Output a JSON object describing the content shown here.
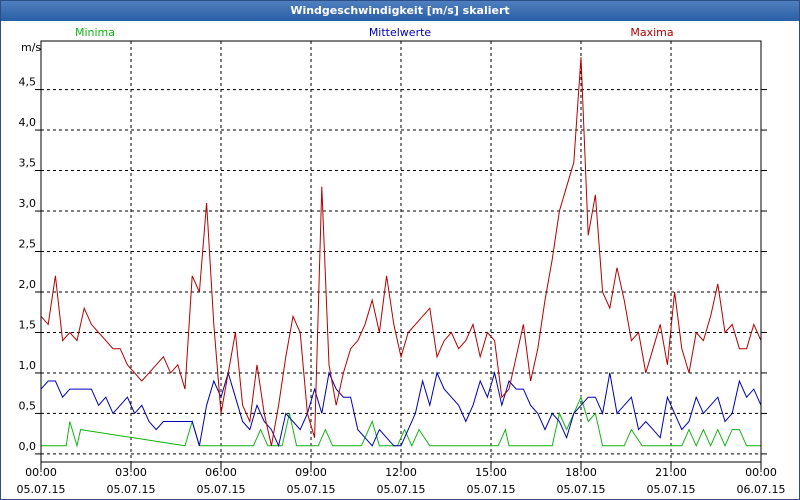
{
  "window": {
    "title": "Windgeschwindigkeit [m/s] skaliert"
  },
  "chart_data": {
    "type": "line",
    "title": "Windgeschwindigkeit [m/s] skaliert",
    "ylabel": "m/s",
    "ylim": [
      -0.1,
      5.1
    ],
    "xlim": [
      0,
      100
    ],
    "grid": true,
    "legend_placement": "top",
    "yticks": [
      {
        "v": 0.0,
        "label": "0,0"
      },
      {
        "v": 0.5,
        "label": "0,5"
      },
      {
        "v": 1.0,
        "label": "1,0"
      },
      {
        "v": 1.5,
        "label": "1,5"
      },
      {
        "v": 2.0,
        "label": "2,0"
      },
      {
        "v": 2.5,
        "label": "2,5"
      },
      {
        "v": 3.0,
        "label": "3,0"
      },
      {
        "v": 3.5,
        "label": "3,5"
      },
      {
        "v": 4.0,
        "label": "4,0"
      },
      {
        "v": 4.5,
        "label": "4,5"
      }
    ],
    "xticks": [
      {
        "v": 0,
        "time": "00:00",
        "date": "05.07.15"
      },
      {
        "v": 12.5,
        "time": "03:00",
        "date": "05.07.15"
      },
      {
        "v": 25,
        "time": "06:00",
        "date": "05.07.15"
      },
      {
        "v": 37.5,
        "time": "09:00",
        "date": "05.07.15"
      },
      {
        "v": 50,
        "time": "12:00",
        "date": "05.07.15"
      },
      {
        "v": 62.5,
        "time": "15:00",
        "date": "05.07.15"
      },
      {
        "v": 75,
        "time": "18:00",
        "date": "05.07.15"
      },
      {
        "v": 87.5,
        "time": "21:00",
        "date": "05.07.15"
      },
      {
        "v": 100,
        "time": "00:00",
        "date": "06.07.15"
      }
    ],
    "series": [
      {
        "name": "Minima",
        "color": "#13b313",
        "x": [
          0,
          3.5,
          4,
          5,
          5.5,
          20,
          21,
          22,
          29.5,
          30.5,
          31.5,
          33.5,
          34.5,
          35.5,
          38.5,
          39.5,
          40.5,
          44.5,
          45.5,
          46,
          47,
          48,
          49,
          49.5,
          50.5,
          51.5,
          52.5,
          54,
          55,
          63.5,
          64.5,
          65,
          71,
          72,
          73,
          74,
          75,
          76,
          77,
          78,
          81,
          82,
          83.5,
          85,
          86,
          88,
          89,
          90,
          91,
          92,
          93,
          94,
          95,
          96,
          97,
          98,
          99,
          100
        ],
        "y": [
          0.1,
          0.1,
          0.4,
          0.1,
          0.3,
          0.1,
          0.4,
          0.1,
          0.1,
          0.3,
          0.1,
          0.1,
          0.5,
          0.1,
          0.1,
          0.3,
          0.1,
          0.1,
          0.3,
          0.4,
          0.1,
          0.1,
          0.1,
          0.1,
          0.3,
          0.1,
          0.3,
          0.1,
          0.1,
          0.1,
          0.3,
          0.1,
          0.1,
          0.5,
          0.3,
          0.5,
          0.7,
          0.4,
          0.5,
          0.1,
          0.1,
          0.3,
          0.1,
          0.1,
          0.1,
          0.1,
          0.1,
          0.3,
          0.1,
          0.3,
          0.1,
          0.3,
          0.1,
          0.3,
          0.3,
          0.1,
          0.1,
          0.1
        ]
      },
      {
        "name": "Mittelwerte",
        "color": "#0000b4",
        "x": [
          0,
          1,
          2,
          3,
          4,
          5,
          6,
          7,
          8,
          9,
          10,
          11,
          12,
          13,
          14,
          15,
          16,
          17,
          18,
          19,
          20,
          21,
          22,
          23,
          24,
          25,
          26,
          27,
          28,
          29,
          30,
          31,
          32,
          33,
          34,
          35,
          36,
          37,
          38,
          39,
          40,
          41,
          42,
          43,
          44,
          45,
          46,
          47,
          48,
          49,
          50,
          51,
          52,
          53,
          54,
          55,
          56,
          57,
          58,
          59,
          60,
          61,
          62,
          63,
          64,
          65,
          66,
          67,
          68,
          69,
          70,
          71,
          72,
          73,
          74,
          75,
          76,
          77,
          78,
          79,
          80,
          81,
          82,
          83,
          84,
          85,
          86,
          87,
          88,
          89,
          90,
          91,
          92,
          93,
          94,
          95,
          96,
          97,
          98,
          99,
          100
        ],
        "y": [
          0.8,
          0.9,
          0.9,
          0.7,
          0.8,
          0.8,
          0.8,
          0.8,
          0.6,
          0.7,
          0.5,
          0.6,
          0.7,
          0.5,
          0.6,
          0.4,
          0.3,
          0.4,
          0.4,
          0.4,
          0.4,
          0.4,
          0.1,
          0.6,
          0.9,
          0.7,
          1.0,
          0.7,
          0.4,
          0.3,
          0.6,
          0.4,
          0.3,
          0.1,
          0.5,
          0.4,
          0.3,
          0.5,
          0.8,
          0.5,
          1.0,
          0.8,
          0.7,
          0.7,
          0.3,
          0.2,
          0.1,
          0.3,
          0.2,
          0.1,
          0.1,
          0.3,
          0.5,
          0.9,
          0.6,
          1.0,
          0.8,
          0.7,
          0.6,
          0.4,
          0.6,
          0.9,
          0.7,
          1.0,
          0.6,
          0.9,
          0.8,
          0.8,
          0.6,
          0.5,
          0.3,
          0.5,
          0.4,
          0.2,
          0.5,
          0.6,
          0.7,
          0.7,
          0.5,
          1.0,
          0.5,
          0.6,
          0.7,
          0.3,
          0.4,
          0.3,
          0.2,
          0.7,
          0.5,
          0.3,
          0.4,
          0.7,
          0.5,
          0.6,
          0.7,
          0.4,
          0.5,
          0.9,
          0.7,
          0.8,
          0.6
        ]
      },
      {
        "name": "Maxima",
        "color": "#b40000",
        "x": [
          0,
          1,
          2,
          3,
          4,
          5,
          6,
          7,
          8,
          9,
          10,
          11,
          12,
          13,
          14,
          15,
          16,
          17,
          18,
          19,
          20,
          21,
          22,
          23,
          24,
          25,
          26,
          27,
          28,
          29,
          30,
          31,
          32,
          33,
          34,
          35,
          36,
          37,
          38,
          39,
          40,
          41,
          42,
          43,
          44,
          45,
          46,
          47,
          48,
          49,
          50,
          51,
          52,
          53,
          54,
          55,
          56,
          57,
          58,
          59,
          60,
          61,
          62,
          63,
          64,
          65,
          66,
          67,
          68,
          69,
          70,
          71,
          72,
          73,
          74,
          75,
          76,
          77,
          78,
          79,
          80,
          81,
          82,
          83,
          84,
          85,
          86,
          87,
          88,
          89,
          90,
          91,
          92,
          93,
          94,
          95,
          96,
          97,
          98,
          99,
          100
        ],
        "y": [
          1.7,
          1.6,
          2.2,
          1.4,
          1.5,
          1.4,
          1.8,
          1.6,
          1.5,
          1.4,
          1.3,
          1.3,
          1.1,
          1.0,
          0.9,
          1.0,
          1.1,
          1.2,
          1.0,
          1.1,
          0.8,
          2.2,
          2.0,
          3.1,
          1.6,
          0.5,
          1.0,
          1.5,
          0.6,
          0.4,
          1.1,
          0.5,
          0.1,
          0.6,
          1.2,
          1.7,
          1.5,
          0.5,
          0.2,
          3.3,
          1.1,
          0.6,
          1.0,
          1.3,
          1.4,
          1.6,
          1.9,
          1.5,
          2.2,
          1.6,
          1.2,
          1.5,
          1.6,
          1.7,
          1.8,
          1.2,
          1.4,
          1.5,
          1.3,
          1.4,
          1.6,
          1.2,
          1.5,
          1.4,
          0.7,
          0.8,
          1.2,
          1.6,
          0.9,
          1.3,
          1.9,
          2.4,
          3.0,
          3.3,
          3.6,
          4.9,
          2.7,
          3.2,
          2.0,
          1.8,
          2.3,
          1.9,
          1.4,
          1.5,
          1.0,
          1.3,
          1.6,
          1.1,
          2.0,
          1.3,
          1.0,
          1.5,
          1.4,
          1.7,
          2.1,
          1.5,
          1.6,
          1.3,
          1.3,
          1.6,
          1.4
        ]
      }
    ]
  }
}
